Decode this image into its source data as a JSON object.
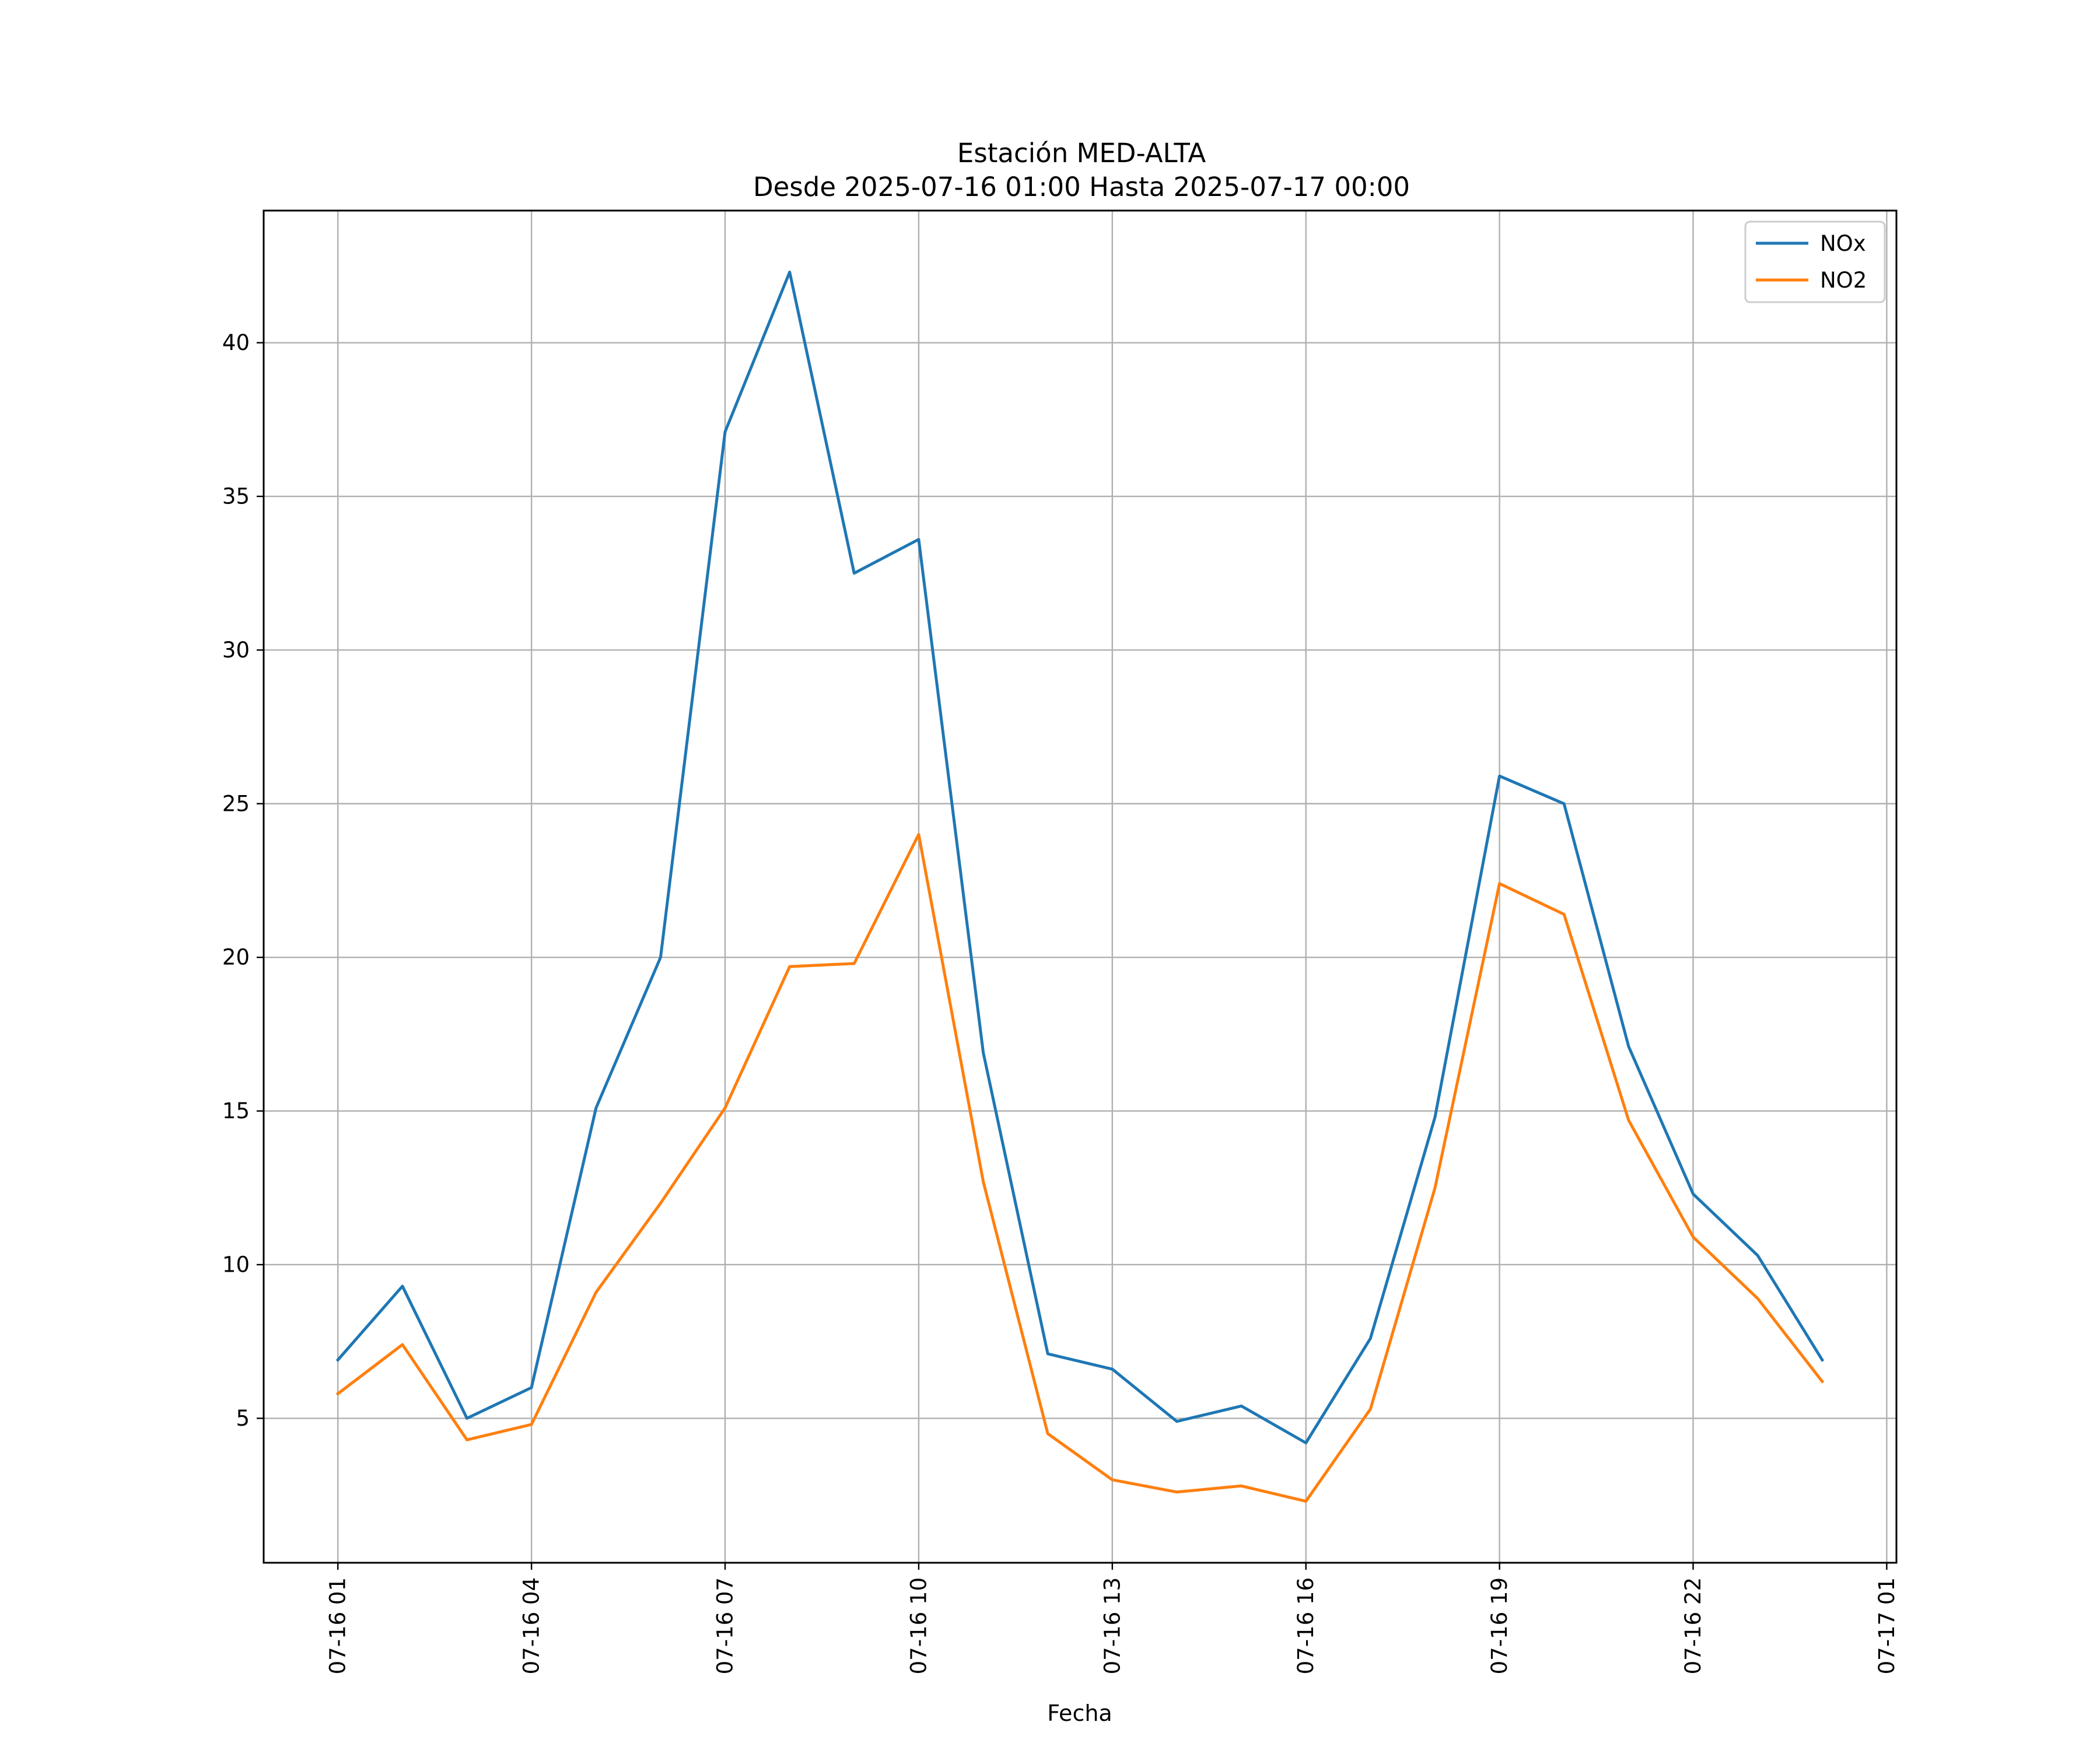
{
  "chart_data": {
    "type": "line",
    "title_line1": "Estación MED-ALTA",
    "title_line2": "Desde 2025-07-16 01:00 Hasta 2025-07-17 00:00",
    "xlabel": "Fecha",
    "ylabel": "",
    "x": [
      "07-16 01",
      "07-16 02",
      "07-16 03",
      "07-16 04",
      "07-16 05",
      "07-16 06",
      "07-16 07",
      "07-16 08",
      "07-16 09",
      "07-16 10",
      "07-16 11",
      "07-16 12",
      "07-16 13",
      "07-16 14",
      "07-16 15",
      "07-16 16",
      "07-16 17",
      "07-16 18",
      "07-16 19",
      "07-16 20",
      "07-16 21",
      "07-16 22",
      "07-16 23",
      "07-17 00"
    ],
    "x_ticks": [
      "07-16 01",
      "07-16 04",
      "07-16 07",
      "07-16 10",
      "07-16 13",
      "07-16 16",
      "07-16 19",
      "07-16 22",
      "07-17 01"
    ],
    "y_ticks": [
      5,
      10,
      15,
      20,
      25,
      30,
      35,
      40
    ],
    "xlim": [
      "07-15 23:51",
      "07-17 01:09"
    ],
    "ylim": [
      0.3,
      44.3
    ],
    "grid": true,
    "legend_position": "top-right",
    "series": [
      {
        "name": "NOx",
        "color": "#1f77b4",
        "values": [
          6.9,
          9.3,
          5.0,
          6.0,
          15.1,
          20.0,
          37.1,
          42.3,
          32.5,
          33.6,
          16.9,
          7.1,
          6.6,
          4.9,
          5.4,
          4.2,
          7.6,
          14.8,
          25.9,
          25.0,
          17.1,
          12.3,
          10.3,
          6.9
        ]
      },
      {
        "name": "NO2",
        "color": "#ff7f0e",
        "values": [
          5.8,
          7.4,
          4.3,
          4.8,
          9.1,
          12.0,
          15.1,
          19.7,
          19.8,
          24.0,
          12.7,
          4.5,
          3.0,
          2.6,
          2.8,
          2.3,
          5.3,
          12.5,
          22.4,
          21.4,
          14.7,
          10.9,
          8.9,
          6.2
        ]
      }
    ]
  }
}
